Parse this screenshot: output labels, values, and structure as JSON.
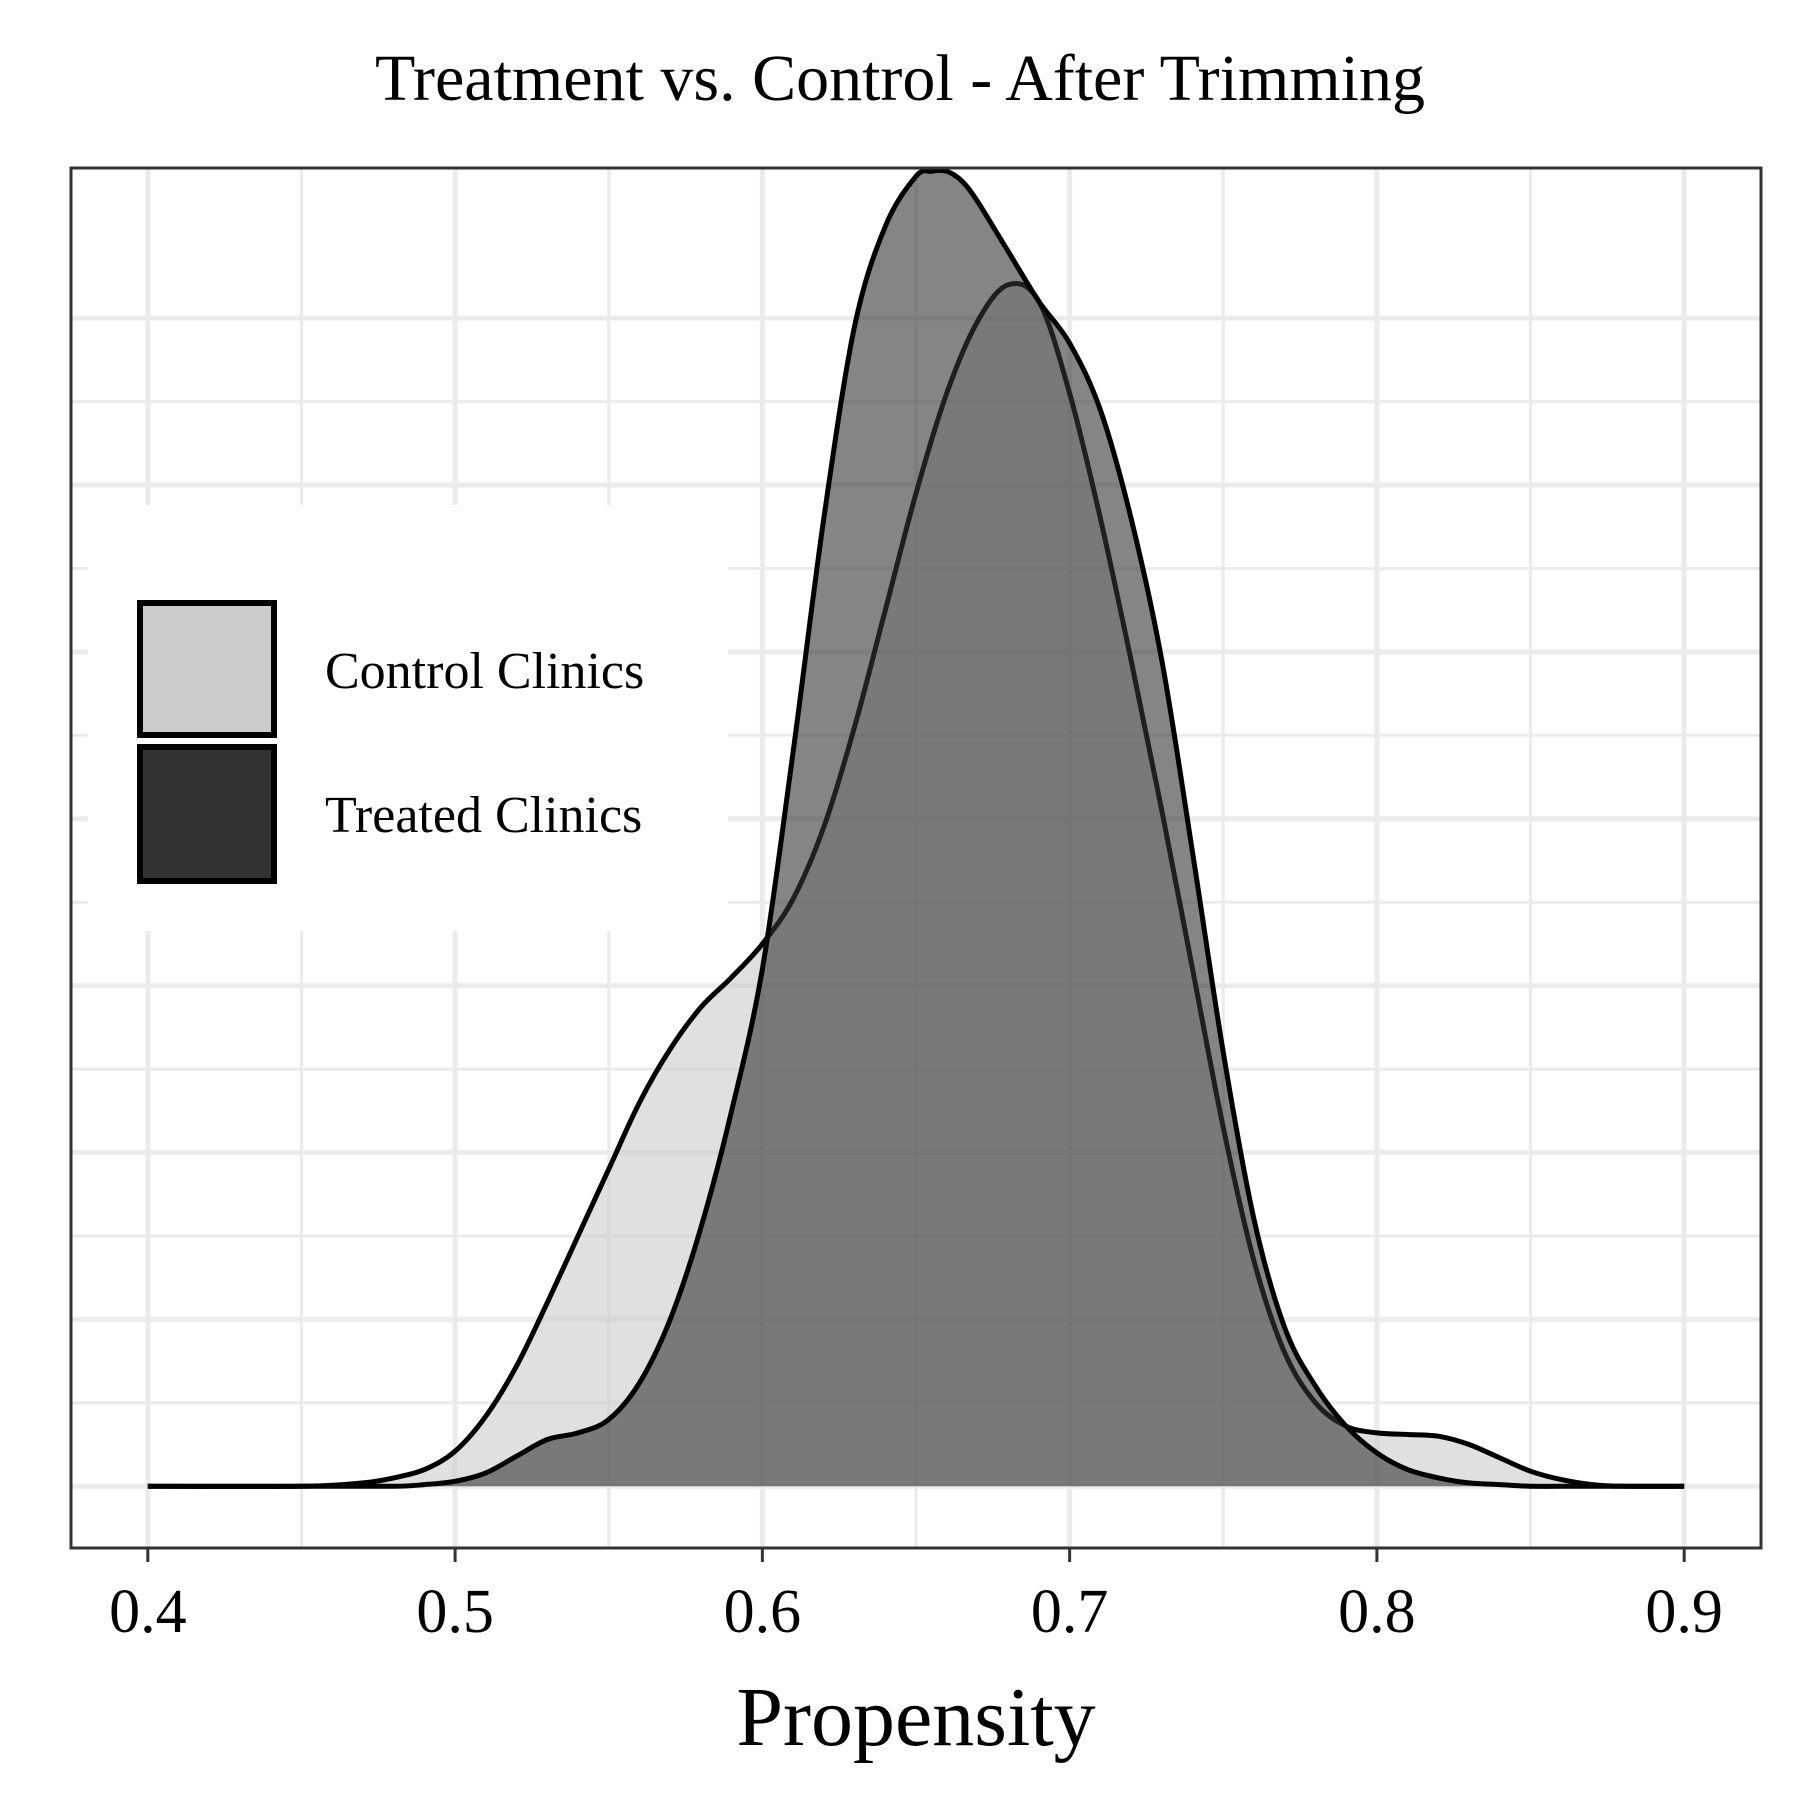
{
  "chart_data": {
    "type": "area",
    "title": "Treatment vs. Control - After Trimming",
    "xlabel": "Propensity",
    "ylabel": "",
    "xlim": [
      0.375,
      0.925
    ],
    "ylim": [
      -0.37,
      7.9
    ],
    "x_ticks": [
      0.4,
      0.5,
      0.6,
      0.7,
      0.8,
      0.9
    ],
    "x_tick_labels": [
      "0.4",
      "0.5",
      "0.6",
      "0.7",
      "0.8",
      "0.9"
    ],
    "y_gridlines": [
      0,
      1,
      2,
      3,
      4,
      5,
      6,
      7
    ],
    "grid": true,
    "legend_position": "left",
    "series": [
      {
        "name": "Control Clinics",
        "fill": "#cccccc",
        "x": [
          0.4,
          0.45,
          0.47,
          0.48,
          0.49,
          0.5,
          0.51,
          0.52,
          0.53,
          0.54,
          0.55,
          0.56,
          0.57,
          0.58,
          0.59,
          0.6,
          0.61,
          0.62,
          0.63,
          0.64,
          0.65,
          0.66,
          0.67,
          0.68,
          0.69,
          0.7,
          0.71,
          0.72,
          0.73,
          0.74,
          0.75,
          0.76,
          0.77,
          0.78,
          0.79,
          0.8,
          0.81,
          0.82,
          0.83,
          0.84,
          0.85,
          0.86,
          0.87,
          0.88,
          0.9
        ],
        "y": [
          0.0,
          0.0,
          0.02,
          0.05,
          0.1,
          0.21,
          0.42,
          0.72,
          1.1,
          1.5,
          1.9,
          2.3,
          2.62,
          2.87,
          3.05,
          3.25,
          3.52,
          3.95,
          4.55,
          5.25,
          5.95,
          6.55,
          6.98,
          7.2,
          7.1,
          6.55,
          5.8,
          4.95,
          4.05,
          3.1,
          2.15,
          1.35,
          0.8,
          0.5,
          0.36,
          0.32,
          0.31,
          0.3,
          0.25,
          0.17,
          0.09,
          0.04,
          0.01,
          0.0,
          0.0
        ]
      },
      {
        "name": "Treated Clinics",
        "fill": "#333333",
        "x": [
          0.4,
          0.45,
          0.48,
          0.49,
          0.5,
          0.51,
          0.52,
          0.53,
          0.54,
          0.55,
          0.56,
          0.57,
          0.58,
          0.59,
          0.6,
          0.61,
          0.62,
          0.63,
          0.64,
          0.65,
          0.655,
          0.66,
          0.665,
          0.67,
          0.68,
          0.69,
          0.7,
          0.71,
          0.72,
          0.73,
          0.74,
          0.75,
          0.76,
          0.77,
          0.78,
          0.79,
          0.8,
          0.81,
          0.82,
          0.83,
          0.84,
          0.85,
          0.86,
          0.88,
          0.9
        ],
        "y": [
          0.0,
          0.0,
          0.0,
          0.01,
          0.03,
          0.08,
          0.18,
          0.28,
          0.32,
          0.4,
          0.62,
          1.0,
          1.55,
          2.25,
          3.1,
          4.4,
          5.8,
          6.95,
          7.55,
          7.85,
          7.88,
          7.88,
          7.82,
          7.7,
          7.4,
          7.1,
          6.85,
          6.45,
          5.8,
          4.95,
          3.8,
          2.6,
          1.6,
          0.95,
          0.6,
          0.36,
          0.2,
          0.1,
          0.05,
          0.02,
          0.01,
          0.0,
          0.0,
          0.0,
          0.0
        ]
      }
    ]
  }
}
